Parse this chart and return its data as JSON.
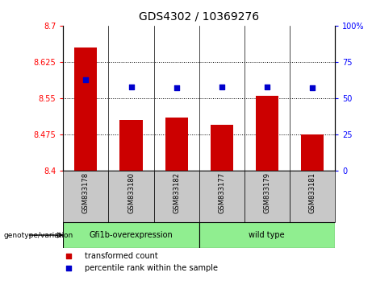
{
  "title": "GDS4302 / 10369276",
  "samples": [
    "GSM833178",
    "GSM833180",
    "GSM833182",
    "GSM833177",
    "GSM833179",
    "GSM833181"
  ],
  "bar_values": [
    8.655,
    8.505,
    8.51,
    8.495,
    8.555,
    8.475
  ],
  "percentile_values": [
    63,
    58,
    57,
    58,
    58,
    57
  ],
  "ylim_left": [
    8.4,
    8.7
  ],
  "ylim_right": [
    0,
    100
  ],
  "yticks_left": [
    8.4,
    8.475,
    8.55,
    8.625,
    8.7
  ],
  "yticks_right": [
    0,
    25,
    50,
    75,
    100
  ],
  "ytick_labels_left": [
    "8.4",
    "8.475",
    "8.55",
    "8.625",
    "8.7"
  ],
  "ytick_labels_right": [
    "0",
    "25",
    "50",
    "75",
    "100%"
  ],
  "bar_color": "#cc0000",
  "dot_color": "#0000cc",
  "group1_label": "Gfi1b-overexpression",
  "group2_label": "wild type",
  "group1_indices": [
    0,
    1,
    2
  ],
  "group2_indices": [
    3,
    4,
    5
  ],
  "group1_color": "#90ee90",
  "group2_color": "#90ee90",
  "sample_box_color": "#c8c8c8",
  "legend_bar_label": "transformed count",
  "legend_dot_label": "percentile rank within the sample",
  "genotype_label": "genotype/variation"
}
